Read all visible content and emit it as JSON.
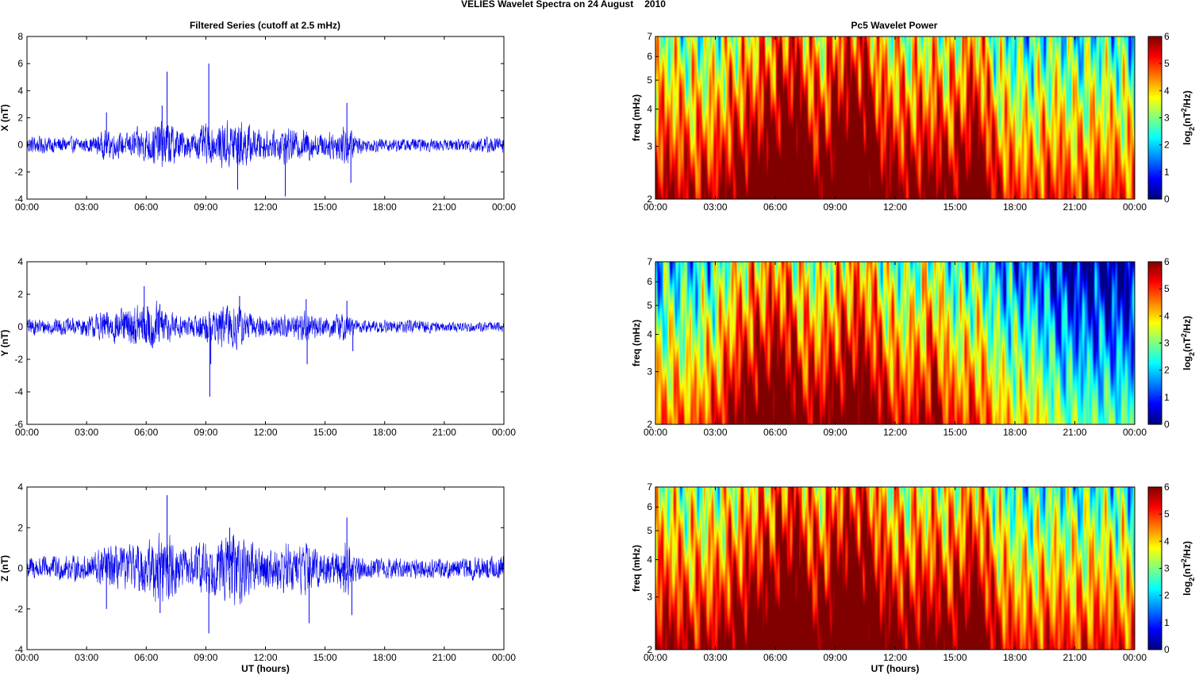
{
  "figure": {
    "suptitle_name": "VELIES Wavelet Spectra on 24 August",
    "suptitle_year": "2010",
    "left_title": "Filtered Series (cutoff at 2.5 mHz)",
    "right_title": "Pc5 Wavelet Power",
    "xlabel": "UT (hours)",
    "freq_label": "freq (mHz)",
    "cbar_label_prefix": "log",
    "cbar_label_sub": "2",
    "cbar_label_mid": "(nT",
    "cbar_label_sup": "2",
    "cbar_label_suffix": "/Hz)"
  },
  "time_ticks": [
    "00:00",
    "03:00",
    "06:00",
    "09:00",
    "12:00",
    "15:00",
    "18:00",
    "21:00",
    "00:00"
  ],
  "chart_data": [
    {
      "type": "line",
      "title": "Filtered Series (cutoff at 2.5 mHz)",
      "ylabel": "X (nT)",
      "xlabel": "",
      "xlim": [
        0,
        24
      ],
      "ylim": [
        -4,
        8
      ],
      "yticks": [
        "-4",
        "-2",
        "0",
        "2",
        "4",
        "6",
        "8"
      ],
      "color": "#0000ee",
      "envelope": {
        "x": [
          0,
          1,
          2,
          3,
          3.5,
          4,
          5,
          5.5,
          6,
          6.5,
          7,
          7.5,
          8,
          8.5,
          9,
          9.5,
          10,
          10.5,
          11,
          11.5,
          12,
          12.5,
          13,
          13.5,
          14,
          14.5,
          15,
          15.5,
          16,
          16.5,
          17,
          18,
          19,
          20,
          21,
          22,
          23,
          24
        ],
        "y": [
          0.7,
          0.6,
          0.6,
          0.5,
          0.7,
          1.1,
          0.8,
          1.2,
          1.3,
          1.6,
          1.8,
          1.4,
          0.9,
          1.0,
          1.5,
          1.2,
          1.8,
          1.9,
          1.6,
          1.2,
          1.1,
          1.0,
          1.4,
          1.0,
          1.2,
          1.0,
          0.9,
          1.1,
          1.7,
          0.8,
          0.5,
          0.5,
          0.5,
          0.5,
          0.4,
          0.5,
          0.6,
          0.6
        ]
      },
      "spikes": {
        "x": [
          4.0,
          6.8,
          7.05,
          9.15,
          10.6,
          13.0,
          16.1,
          16.3
        ],
        "y": [
          2.4,
          2.9,
          5.4,
          6.0,
          -3.3,
          -3.8,
          3.1,
          -2.8
        ]
      }
    },
    {
      "type": "line",
      "title": "",
      "ylabel": "Y (nT)",
      "xlabel": "",
      "xlim": [
        0,
        24
      ],
      "ylim": [
        -6,
        4
      ],
      "yticks": [
        "-6",
        "-4",
        "-2",
        "0",
        "2",
        "4"
      ],
      "color": "#0000ee",
      "envelope": {
        "x": [
          0,
          1,
          2,
          3,
          3.5,
          4,
          5,
          5.5,
          6,
          6.5,
          7,
          7.5,
          8,
          8.5,
          9,
          9.5,
          10,
          10.5,
          11,
          11.5,
          12,
          12.5,
          13,
          13.5,
          14,
          14.5,
          15,
          15.5,
          16,
          16.5,
          17,
          18,
          19,
          20,
          21,
          22,
          23,
          24
        ],
        "y": [
          0.5,
          0.5,
          0.5,
          0.6,
          0.8,
          1.0,
          1.1,
          1.3,
          1.4,
          1.6,
          1.1,
          0.8,
          0.6,
          0.7,
          1.0,
          1.0,
          1.4,
          1.5,
          1.0,
          0.7,
          0.7,
          0.6,
          0.8,
          0.7,
          1.0,
          0.7,
          0.6,
          0.7,
          0.9,
          0.5,
          0.4,
          0.4,
          0.4,
          0.4,
          0.3,
          0.3,
          0.3,
          0.3
        ]
      },
      "spikes": {
        "x": [
          5.9,
          9.2,
          9.25,
          10.7,
          14.05,
          14.1,
          16.1,
          16.4
        ],
        "y": [
          2.5,
          -4.3,
          -2.3,
          1.9,
          1.7,
          -2.3,
          1.6,
          -1.5
        ]
      }
    },
    {
      "type": "line",
      "title": "",
      "ylabel": "Z (nT)",
      "xlabel": "UT (hours)",
      "xlim": [
        0,
        24
      ],
      "ylim": [
        -4,
        4
      ],
      "yticks": [
        "-4",
        "-2",
        "0",
        "2",
        "4"
      ],
      "color": "#0000ee",
      "envelope": {
        "x": [
          0,
          1,
          2,
          3,
          3.5,
          4,
          5,
          5.5,
          6,
          6.5,
          7,
          7.5,
          8,
          8.5,
          9,
          9.5,
          10,
          10.5,
          11,
          11.5,
          12,
          12.5,
          13,
          13.5,
          14,
          14.5,
          15,
          15.5,
          16,
          16.5,
          17,
          18,
          19,
          20,
          21,
          22,
          23,
          24
        ],
        "y": [
          0.6,
          0.6,
          0.6,
          0.6,
          0.9,
          1.1,
          1.0,
          1.2,
          1.3,
          1.7,
          1.9,
          1.2,
          0.9,
          1.1,
          1.5,
          1.2,
          1.7,
          1.8,
          1.5,
          1.0,
          1.1,
          0.9,
          1.4,
          1.0,
          1.3,
          1.0,
          0.8,
          0.9,
          1.6,
          0.7,
          0.5,
          0.5,
          0.5,
          0.5,
          0.5,
          0.5,
          0.6,
          0.6
        ]
      },
      "spikes": {
        "x": [
          4.0,
          6.7,
          7.05,
          9.15,
          10.2,
          14.2,
          16.1,
          16.35
        ],
        "y": [
          -2.0,
          -2.2,
          3.6,
          -3.2,
          2.0,
          -2.7,
          2.5,
          -2.3
        ]
      }
    },
    {
      "type": "heatmap",
      "title": "Pc5 Wavelet Power",
      "ylabel": "freq (mHz)",
      "xlabel": "",
      "xlim": [
        0,
        24
      ],
      "ylim": [
        2,
        7
      ],
      "yscale": "log",
      "yticks": [
        "2",
        "3",
        "4",
        "5",
        "6",
        "7"
      ],
      "colorscale": "jet",
      "clim": [
        0,
        6
      ],
      "cticks": [
        "0",
        "1",
        "2",
        "3",
        "4",
        "5",
        "6"
      ],
      "clabel": "log2(nT2/Hz)",
      "activity": {
        "x": [
          0,
          1,
          2,
          3,
          4,
          5,
          6,
          6.5,
          7,
          7.5,
          8,
          8.5,
          9,
          9.5,
          10,
          10.5,
          11,
          11.5,
          12,
          12.5,
          13,
          13.5,
          14,
          14.5,
          15,
          15.5,
          16,
          17,
          18,
          19,
          20,
          21,
          22,
          23,
          24
        ],
        "y": [
          4.6,
          4.4,
          4.2,
          4.3,
          4.9,
          5.3,
          5.8,
          6.1,
          6.3,
          5.6,
          5.0,
          5.2,
          5.9,
          6.1,
          6.3,
          6.2,
          5.5,
          4.9,
          4.9,
          4.6,
          4.9,
          4.7,
          5.0,
          4.7,
          4.8,
          5.2,
          5.7,
          4.2,
          3.7,
          3.6,
          4.0,
          3.6,
          3.8,
          3.8,
          3.4
        ]
      }
    },
    {
      "type": "heatmap",
      "title": "",
      "ylabel": "freq (mHz)",
      "xlabel": "",
      "xlim": [
        0,
        24
      ],
      "ylim": [
        2,
        7
      ],
      "yscale": "log",
      "yticks": [
        "2",
        "3",
        "4",
        "5",
        "6",
        "7"
      ],
      "colorscale": "jet",
      "clim": [
        0,
        6
      ],
      "cticks": [
        "0",
        "1",
        "2",
        "3",
        "4",
        "5",
        "6"
      ],
      "clabel": "log2(nT2/Hz)",
      "activity": {
        "x": [
          0,
          1,
          2,
          3,
          4,
          5,
          6,
          6.5,
          7,
          7.5,
          8,
          8.5,
          9,
          9.5,
          10,
          10.5,
          11,
          11.5,
          12,
          12.5,
          13,
          13.5,
          14,
          14.5,
          15,
          15.5,
          16,
          17,
          18,
          19,
          20,
          21,
          22,
          23,
          24
        ],
        "y": [
          3.2,
          3.4,
          3.3,
          3.8,
          4.8,
          5.2,
          5.6,
          5.5,
          5.0,
          4.6,
          4.5,
          4.7,
          5.0,
          5.2,
          5.5,
          5.3,
          4.9,
          4.4,
          4.1,
          3.9,
          4.2,
          4.4,
          4.8,
          3.9,
          3.6,
          3.6,
          3.9,
          3.0,
          2.6,
          2.6,
          1.9,
          1.6,
          1.5,
          1.4,
          1.4
        ]
      }
    },
    {
      "type": "heatmap",
      "title": "",
      "ylabel": "freq (mHz)",
      "xlabel": "UT (hours)",
      "xlim": [
        0,
        24
      ],
      "ylim": [
        2,
        7
      ],
      "yscale": "log",
      "yticks": [
        "2",
        "3",
        "4",
        "5",
        "6",
        "7"
      ],
      "colorscale": "jet",
      "clim": [
        0,
        6
      ],
      "cticks": [
        "0",
        "1",
        "2",
        "3",
        "4",
        "5",
        "6"
      ],
      "clabel": "log2(nT2/Hz)",
      "activity": {
        "x": [
          0,
          1,
          2,
          3,
          4,
          5,
          6,
          6.5,
          7,
          7.5,
          8,
          8.5,
          9,
          9.5,
          10,
          10.5,
          11,
          11.5,
          12,
          12.5,
          13,
          13.5,
          14,
          14.5,
          15,
          15.5,
          16,
          17,
          18,
          19,
          20,
          21,
          22,
          23,
          24
        ],
        "y": [
          4.7,
          4.5,
          4.3,
          4.4,
          5.0,
          5.3,
          5.8,
          6.1,
          6.3,
          5.7,
          5.1,
          5.3,
          5.9,
          6.1,
          6.3,
          6.2,
          5.6,
          5.0,
          5.0,
          4.7,
          5.0,
          4.8,
          5.1,
          4.8,
          4.9,
          5.3,
          5.7,
          4.3,
          3.8,
          3.7,
          4.0,
          3.7,
          3.9,
          3.9,
          3.5
        ]
      }
    }
  ]
}
